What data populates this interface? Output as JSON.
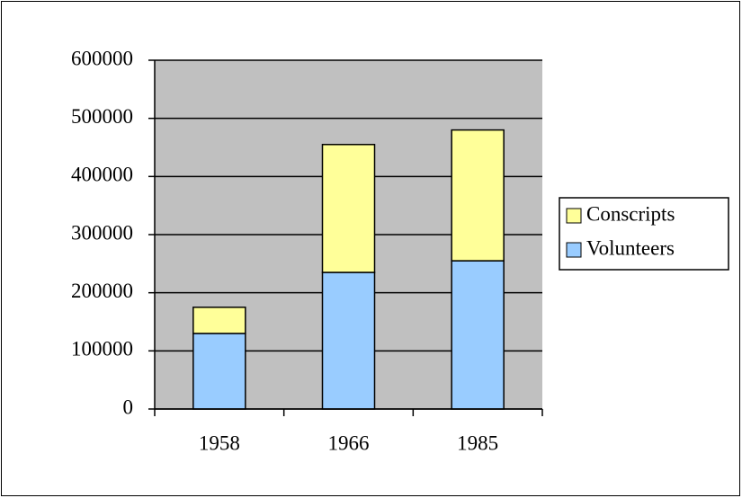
{
  "chart_data": {
    "type": "bar",
    "stacked": true,
    "categories": [
      "1958",
      "1966",
      "1985"
    ],
    "series": [
      {
        "name": "Volunteers",
        "color": "#99ccff",
        "values": [
          130000,
          235000,
          255000
        ]
      },
      {
        "name": "Conscripts",
        "color": "#ffff99",
        "values": [
          45000,
          220000,
          225000
        ]
      }
    ],
    "ylim": [
      0,
      600000
    ],
    "yticks": [
      0,
      100000,
      200000,
      300000,
      400000,
      500000,
      600000
    ],
    "grid": true,
    "legend": "right",
    "plot_background": "#c0c0c0"
  }
}
